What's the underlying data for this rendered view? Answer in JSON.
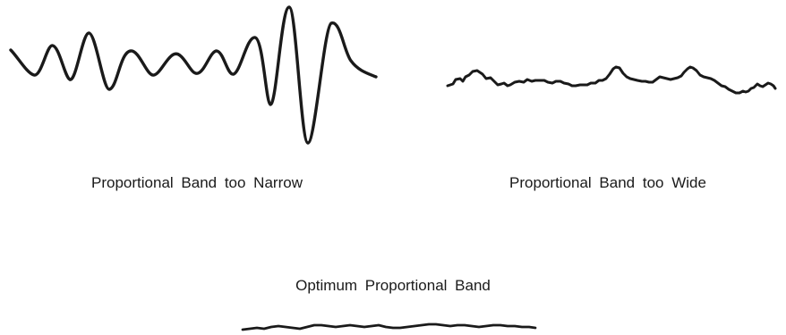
{
  "captions": {
    "narrow": "Proportional Band too Narrow",
    "wide": "Proportional Band too Wide",
    "optimum": "Optimum Proportional Band"
  },
  "colors": {
    "ink": "#1a1a1a",
    "background": "#ffffff"
  }
}
